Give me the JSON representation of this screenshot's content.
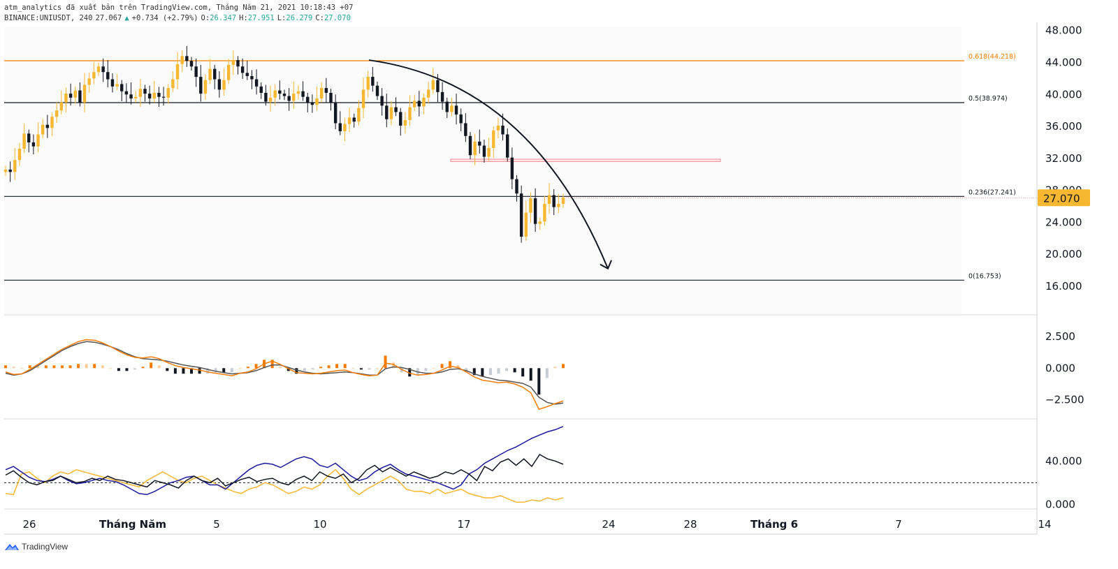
{
  "header": {
    "publish_line": "atm_analytics đã xuất bản trên TradingView.com, Tháng Năm 21, 2021 10:18:43 +07",
    "symbol": "BINANCE:UNIUSDT, 240",
    "last": "27.067",
    "change": "+0.734 (+2.79%)",
    "ohlc": {
      "o_label": "O:",
      "o": "26.347",
      "h_label": "H:",
      "h": "27.951",
      "l_label": "L:",
      "l": "26.279",
      "c_label": "C:",
      "c": "27.070"
    }
  },
  "footer": {
    "brand": "TradingView",
    "logo_icon": "tradingview-logo-icon"
  },
  "colors": {
    "up": "#f7b731",
    "down": "#131722",
    "fib_orange": "#f57c00",
    "fib_black": "#131722",
    "price_badge": "#f7b731",
    "macd_line": "#f57c00",
    "signal_line": "#555555",
    "adx": "#131722",
    "plus_di": "#1a1a9c",
    "minus_di": "#f7b731"
  },
  "chart_data": [
    {
      "type": "candlestick",
      "price_axis_ticks": [
        "48.000",
        "44.000",
        "40.000",
        "36.000",
        "32.000",
        "28.000",
        "24.000",
        "20.000",
        "16.000"
      ],
      "ylim": [
        12.5,
        48.5
      ],
      "last_price_label": "27.070",
      "x_ticks": [
        "26",
        "Tháng Năm",
        "5",
        "10",
        "17",
        "24",
        "28",
        "Tháng 6",
        "7",
        "14"
      ],
      "fibonacci_levels": [
        {
          "label": "0.618(44.218)",
          "value": 44.218
        },
        {
          "label": "0.5(38.974)",
          "value": 38.974
        },
        {
          "label": "0.236(27.241)",
          "value": 27.241
        },
        {
          "label": "0(16.753)",
          "value": 16.753
        }
      ],
      "resistance_zone": {
        "from": 31.6,
        "to": 31.9
      },
      "closes": [
        30.6,
        30.3,
        31.8,
        33.2,
        35.1,
        34.0,
        33.5,
        35.0,
        36.2,
        35.8,
        37.2,
        38.0,
        39.0,
        40.1,
        39.6,
        40.5,
        39.0,
        41.2,
        42.0,
        42.8,
        43.5,
        42.8,
        41.9,
        41.0,
        41.3,
        40.4,
        40.0,
        39.5,
        39.7,
        40.7,
        40.1,
        39.5,
        40.2,
        39.7,
        39.6,
        40.8,
        41.9,
        43.8,
        44.8,
        44.2,
        43.5,
        42.2,
        40.1,
        41.8,
        43.2,
        41.9,
        40.6,
        41.8,
        43.7,
        44.3,
        43.5,
        42.7,
        42.3,
        41.9,
        41.0,
        40.2,
        39.1,
        39.6,
        40.5,
        40.1,
        39.8,
        39.2,
        40.1,
        40.4,
        39.7,
        39.0,
        38.7,
        39.5,
        40.8,
        40.2,
        39.0,
        36.4,
        35.4,
        36.3,
        37.1,
        36.6,
        38.3,
        40.6,
        42.2,
        41.1,
        39.8,
        38.6,
        36.9,
        38.4,
        37.8,
        36.1,
        36.8,
        38.4,
        39.2,
        38.5,
        39.6,
        40.6,
        41.8,
        40.3,
        39.1,
        37.8,
        38.6,
        37.5,
        36.4,
        34.8,
        32.4,
        34.1,
        33.6,
        32.2,
        33.3,
        35.5,
        36.1,
        35.0,
        32.1,
        29.4,
        27.6,
        22.2,
        25.2,
        27.0,
        23.8,
        24.1,
        26.3,
        27.4,
        25.9,
        26.3,
        27.1
      ],
      "macd_axis_ticks": [
        "2.500",
        "0.000",
        "−2.500"
      ],
      "macd_ylim": [
        -3.9,
        4.1
      ],
      "macd_line": [
        -0.3,
        -0.5,
        -0.45,
        -0.1,
        0.3,
        0.7,
        1.1,
        1.5,
        1.8,
        2.1,
        2.25,
        2.2,
        2.0,
        1.7,
        1.35,
        1.05,
        0.85,
        0.8,
        0.9,
        0.75,
        0.45,
        0.2,
        0.05,
        -0.05,
        -0.15,
        -0.3,
        -0.4,
        -0.5,
        -0.6,
        -0.4,
        -0.3,
        -0.05,
        0.35,
        0.55,
        0.3,
        -0.05,
        -0.35,
        -0.4,
        -0.45,
        -0.4,
        -0.3,
        -0.2,
        -0.15,
        -0.35,
        -0.5,
        -0.6,
        -0.55,
        0.4,
        0.3,
        -0.1,
        -0.4,
        -0.55,
        -0.5,
        -0.4,
        -0.15,
        0.15,
        0.05,
        -0.3,
        -0.7,
        -0.95,
        -1.05,
        -1.15,
        -1.1,
        -1.25,
        -1.5,
        -1.95,
        -3.25,
        -3.05,
        -2.8,
        -2.6
      ],
      "signal_line": [
        -0.4,
        -0.55,
        -0.45,
        -0.2,
        0.2,
        0.6,
        1.0,
        1.4,
        1.7,
        1.95,
        2.1,
        2.05,
        1.9,
        1.7,
        1.45,
        1.15,
        0.9,
        0.75,
        0.7,
        0.65,
        0.55,
        0.4,
        0.25,
        0.15,
        0.05,
        -0.1,
        -0.25,
        -0.35,
        -0.45,
        -0.4,
        -0.35,
        -0.2,
        0.05,
        0.25,
        0.25,
        0.05,
        -0.15,
        -0.3,
        -0.4,
        -0.45,
        -0.4,
        -0.35,
        -0.3,
        -0.35,
        -0.45,
        -0.55,
        -0.55,
        -0.05,
        0.1,
        0.05,
        -0.1,
        -0.3,
        -0.4,
        -0.4,
        -0.3,
        -0.1,
        -0.05,
        -0.2,
        -0.45,
        -0.65,
        -0.8,
        -0.95,
        -1.0,
        -1.1,
        -1.2,
        -1.5,
        -2.3,
        -2.7,
        -2.85,
        -2.75
      ],
      "dmi_axis_ticks": [
        "40.000",
        "0.000"
      ],
      "dmi_ylim": [
        -3,
        77
      ],
      "dmi_dashed_level": 20,
      "adx": [
        27,
        31,
        25,
        20,
        18,
        21,
        22,
        26,
        23,
        20,
        21,
        24,
        22,
        26,
        23,
        22,
        20,
        18,
        16,
        22,
        20,
        18,
        15,
        22,
        26,
        22,
        20,
        24,
        17,
        20,
        23,
        25,
        21,
        23,
        24,
        20,
        18,
        23,
        26,
        22,
        30,
        26,
        24,
        28,
        20,
        24,
        32,
        36,
        30,
        34,
        30,
        26,
        30,
        27,
        24,
        26,
        30,
        28,
        32,
        28,
        22,
        35,
        31,
        39,
        42,
        36,
        42,
        35,
        46,
        42,
        40,
        37
      ],
      "plus_di": [
        32,
        35,
        30,
        25,
        22,
        21,
        23,
        26,
        22,
        19,
        20,
        22,
        24,
        22,
        21,
        18,
        14,
        10,
        9,
        12,
        16,
        20,
        22,
        25,
        26,
        22,
        18,
        18,
        14,
        20,
        26,
        32,
        36,
        38,
        37,
        34,
        38,
        42,
        44,
        42,
        36,
        34,
        38,
        32,
        26,
        22,
        24,
        30,
        34,
        37,
        32,
        28,
        26,
        24,
        22,
        20,
        17,
        14,
        18,
        28,
        32,
        38,
        42,
        46,
        50,
        53,
        57,
        61,
        64,
        67,
        69,
        72
      ],
      "minus_di": [
        10,
        9,
        28,
        30,
        24,
        20,
        26,
        30,
        28,
        32,
        30,
        28,
        26,
        24,
        22,
        20,
        18,
        16,
        22,
        26,
        30,
        26,
        22,
        20,
        24,
        26,
        22,
        18,
        15,
        12,
        10,
        14,
        16,
        20,
        18,
        14,
        10,
        12,
        16,
        14,
        18,
        26,
        32,
        24,
        14,
        9,
        14,
        18,
        22,
        26,
        22,
        14,
        12,
        12,
        10,
        14,
        10,
        12,
        14,
        10,
        8,
        6,
        6,
        8,
        5,
        2,
        2,
        4,
        3,
        6,
        4,
        6
      ]
    }
  ]
}
